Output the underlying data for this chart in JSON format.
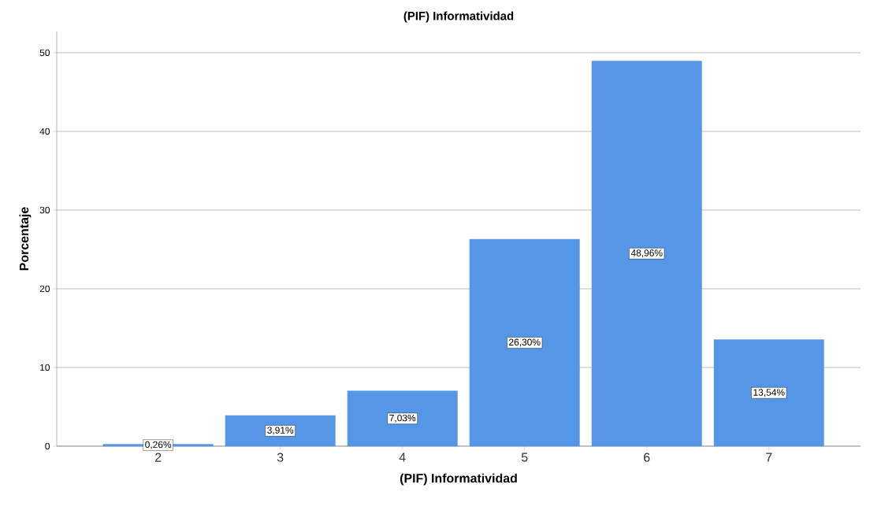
{
  "chart_data": {
    "type": "bar",
    "title": "(PIF) Informatividad",
    "xlabel": "(PIF) Informatividad",
    "ylabel": "Porcentaje",
    "categories": [
      "2",
      "3",
      "4",
      "5",
      "6",
      "7"
    ],
    "values": [
      0.26,
      3.91,
      7.03,
      26.3,
      48.96,
      13.54
    ],
    "value_labels": [
      "0,26%",
      "3,91%",
      "7,03%",
      "26,30%",
      "48,96%",
      "13,54%"
    ],
    "color": "#5596e6",
    "ylim": [
      0,
      52.7
    ],
    "yticks": [
      0,
      10,
      20,
      30,
      40,
      50
    ],
    "grid": "y"
  }
}
